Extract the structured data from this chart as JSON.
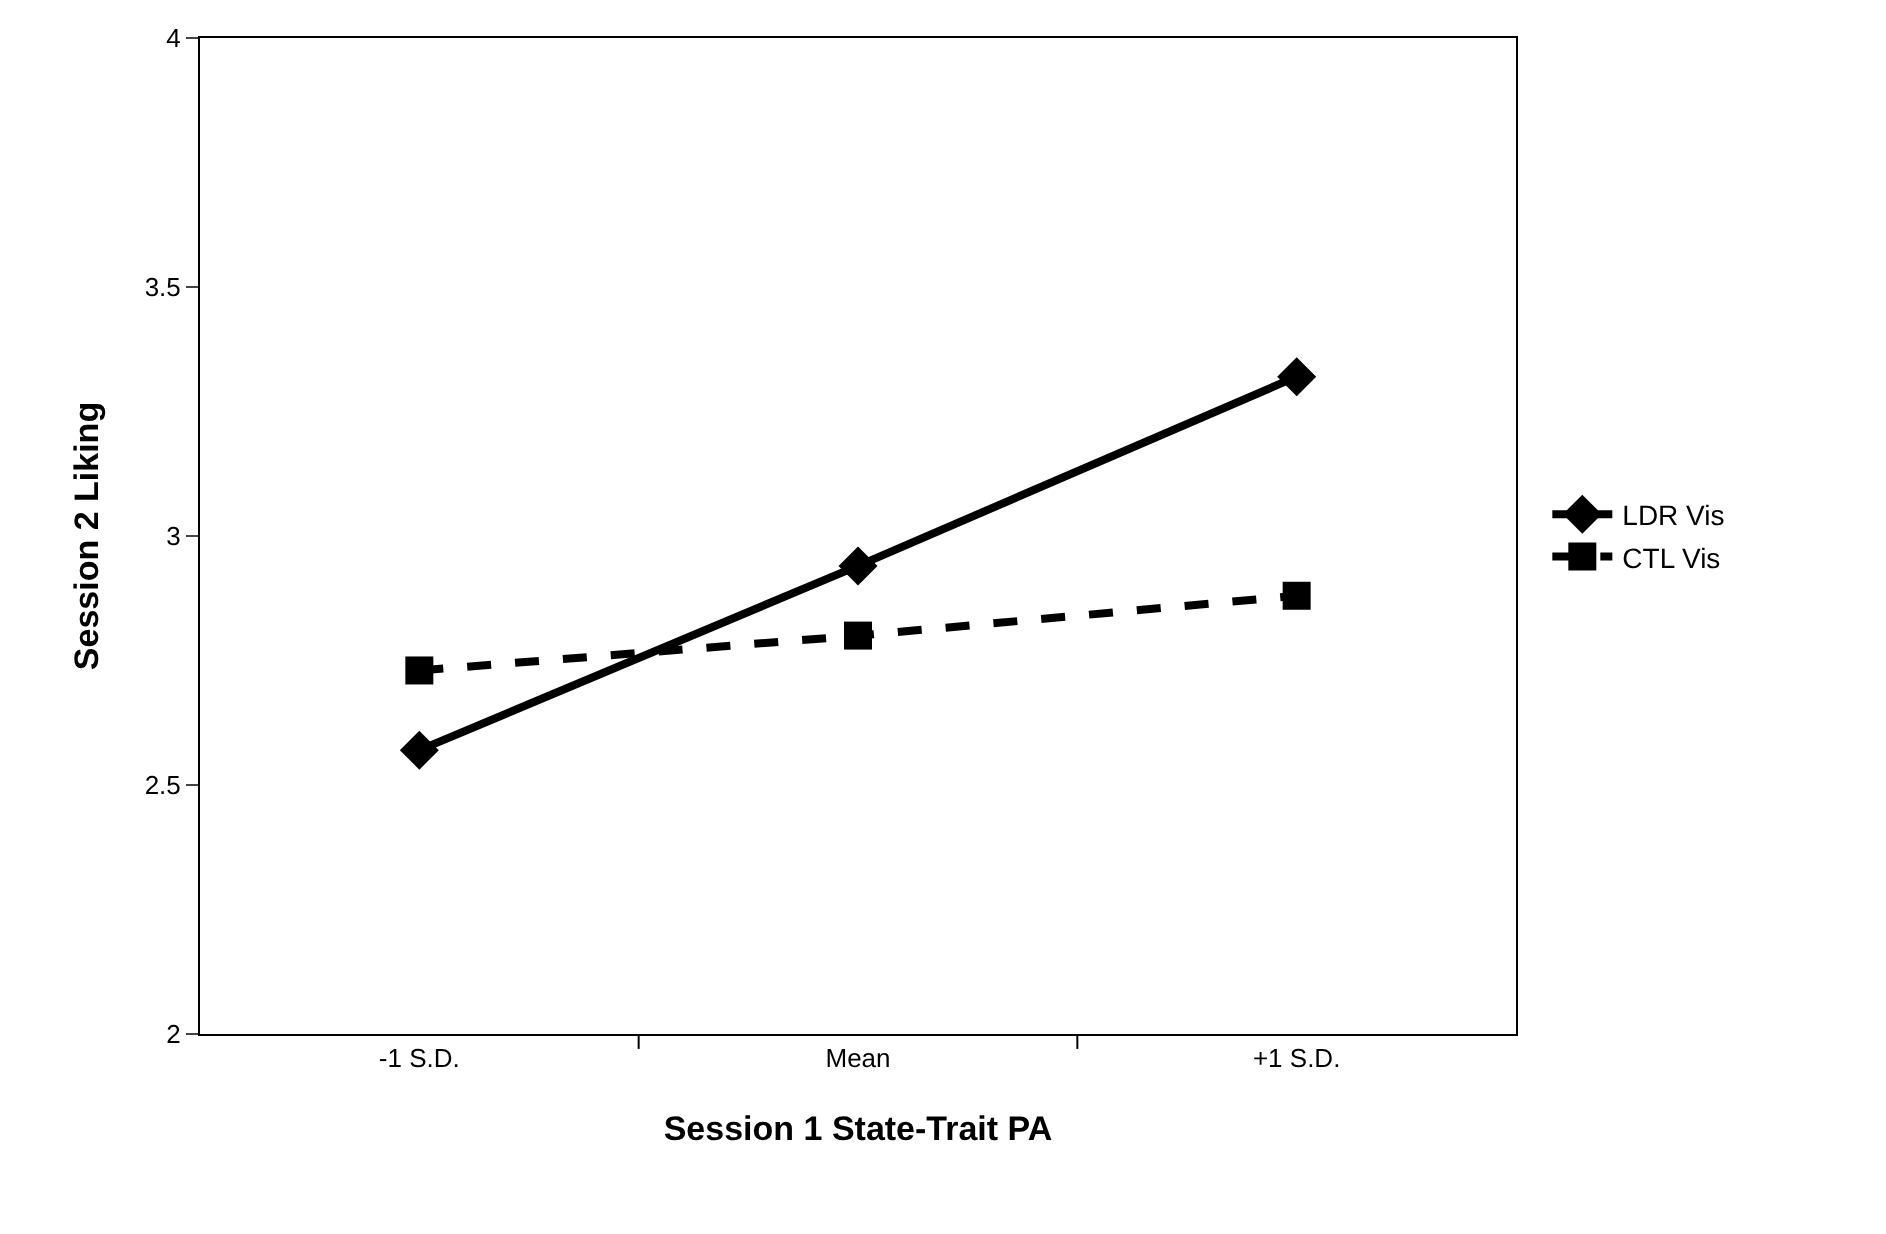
{
  "chart_data": {
    "type": "line",
    "xlabel": "Session 1 State-Trait PA",
    "ylabel": "Session 2 Liking",
    "categories": [
      "-1 S.D.",
      "Mean",
      "+1 S.D."
    ],
    "series": [
      {
        "name": "LDR Vis",
        "color": "#000000",
        "values": [
          2.57,
          2.94,
          3.32
        ],
        "marker": "diamond",
        "line_style": "solid"
      },
      {
        "name": "CTL Vis",
        "color": "#000000",
        "values": [
          2.73,
          2.8,
          2.88
        ],
        "marker": "square",
        "line_style": "dashed"
      }
    ],
    "ylim": [
      2,
      4
    ],
    "yticks": [
      2,
      2.5,
      3,
      3.5,
      4
    ],
    "legend": "right"
  }
}
